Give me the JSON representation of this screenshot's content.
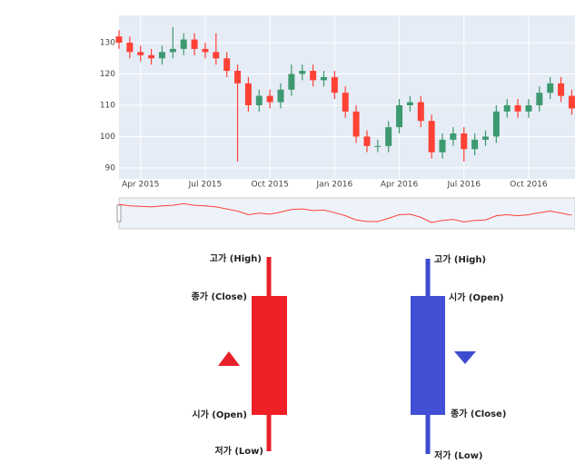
{
  "chart_data": {
    "type": "candlestick",
    "x": [
      2,
      2.5,
      3,
      3.5,
      4,
      4.5,
      5,
      5.5,
      6,
      6.5,
      7,
      7.5,
      8,
      8.5,
      9,
      9.5,
      10,
      10.5,
      11,
      11.5,
      12,
      12.5,
      13,
      13.5,
      14,
      14.5,
      15,
      15.5,
      16,
      16.5,
      17,
      17.5,
      18,
      18.5,
      19,
      19.5,
      20,
      20.5,
      21,
      21.5,
      22,
      22.5,
      23
    ],
    "open": [
      132,
      130,
      127,
      126,
      125,
      127,
      128,
      131,
      128,
      127,
      125,
      121,
      117,
      110,
      113,
      111,
      115,
      120,
      121,
      118,
      119,
      114,
      108,
      100,
      97,
      97,
      103,
      110,
      111,
      105,
      95,
      99,
      101,
      96,
      99,
      100,
      108,
      110,
      108,
      110,
      114,
      117,
      113
    ],
    "high": [
      134,
      132,
      129,
      128,
      129,
      135,
      133,
      133,
      130,
      133,
      127,
      123,
      119,
      115,
      115,
      117,
      123,
      123,
      123,
      121,
      121,
      116,
      110,
      102,
      99,
      105,
      112,
      113,
      113,
      107,
      101,
      103,
      103,
      101,
      102,
      110,
      112,
      112,
      112,
      116,
      119,
      119,
      115
    ],
    "low": [
      128,
      125,
      124,
      123,
      123,
      125,
      126,
      126,
      125,
      123,
      119,
      92,
      108,
      108,
      109,
      109,
      113,
      118,
      116,
      116,
      112,
      106,
      98,
      95,
      95,
      95,
      101,
      108,
      103,
      93,
      93,
      97,
      92,
      94,
      97,
      98,
      106,
      106,
      106,
      108,
      112,
      111,
      107
    ],
    "close": [
      130,
      127,
      126,
      125,
      127,
      128,
      131,
      128,
      127,
      125,
      121,
      117,
      110,
      113,
      111,
      115,
      120,
      121,
      118,
      119,
      114,
      108,
      100,
      97,
      97,
      103,
      110,
      111,
      105,
      95,
      99,
      101,
      96,
      99,
      100,
      108,
      110,
      108,
      110,
      114,
      117,
      113,
      109
    ],
    "increasing_color": "#3d9970",
    "decreasing_color": "#ff4136",
    "xlim": [
      2,
      23.15
    ],
    "xticks": [
      {
        "value": 3,
        "label": "Apr 2015"
      },
      {
        "value": 6,
        "label": "Jul 2015"
      },
      {
        "value": 9,
        "label": "Oct 2015"
      },
      {
        "value": 12,
        "label": "Jan 2016"
      },
      {
        "value": 15,
        "label": "Apr 2016"
      },
      {
        "value": 18,
        "label": "Jul 2016"
      },
      {
        "value": 21,
        "label": "Oct 2016"
      }
    ],
    "ylim": [
      86.5,
      138.7
    ],
    "yticks": [
      90,
      100,
      110,
      120,
      130
    ],
    "grid": true
  },
  "diagram": {
    "bullish": {
      "high": "고가 (High)",
      "close": "종가 (Close)",
      "open": "시가 (Open)",
      "low": "저가 (Low)"
    },
    "bearish": {
      "high": "고가 (High)",
      "open": "시가 (Open)",
      "close": "종가 (Close)",
      "low": "저가 (Low)"
    }
  }
}
